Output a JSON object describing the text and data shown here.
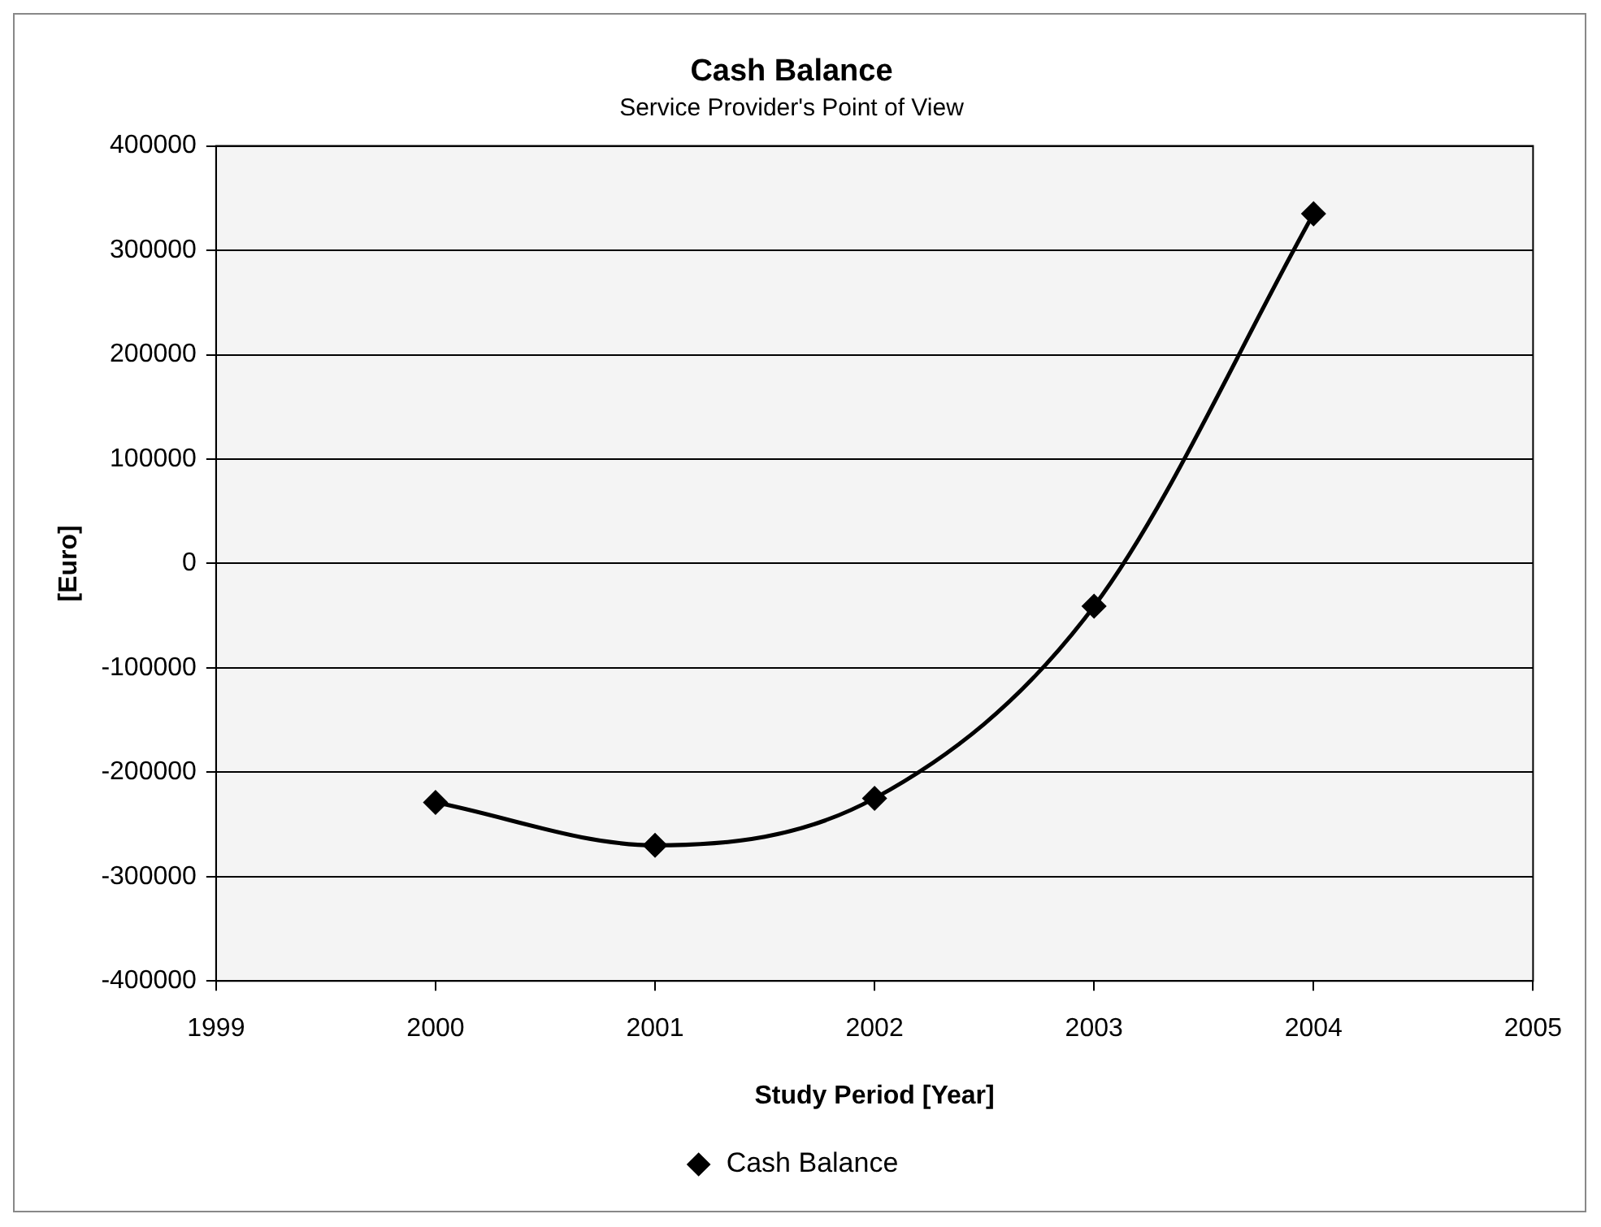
{
  "chart_data": {
    "type": "line",
    "title": "Cash Balance",
    "subtitle": "Service Provider's Point of View",
    "xlabel": "Study Period [Year]",
    "ylabel": "[Euro]",
    "x": [
      2000,
      2001,
      2002,
      2003,
      2004
    ],
    "series": [
      {
        "name": "Cash Balance",
        "color": "#000000",
        "values": [
          -229000,
          -270000,
          -225000,
          -41000,
          335000
        ]
      }
    ],
    "xlim": [
      1999,
      2005
    ],
    "xticks": [
      1999,
      2000,
      2001,
      2002,
      2003,
      2004,
      2005
    ],
    "ylim": [
      -400000,
      400000
    ],
    "yticks": [
      -400000,
      -300000,
      -200000,
      -100000,
      0,
      100000,
      200000,
      300000,
      400000
    ],
    "grid": "y",
    "legend": "bottom",
    "marker": "diamond",
    "line_style": "solid"
  }
}
